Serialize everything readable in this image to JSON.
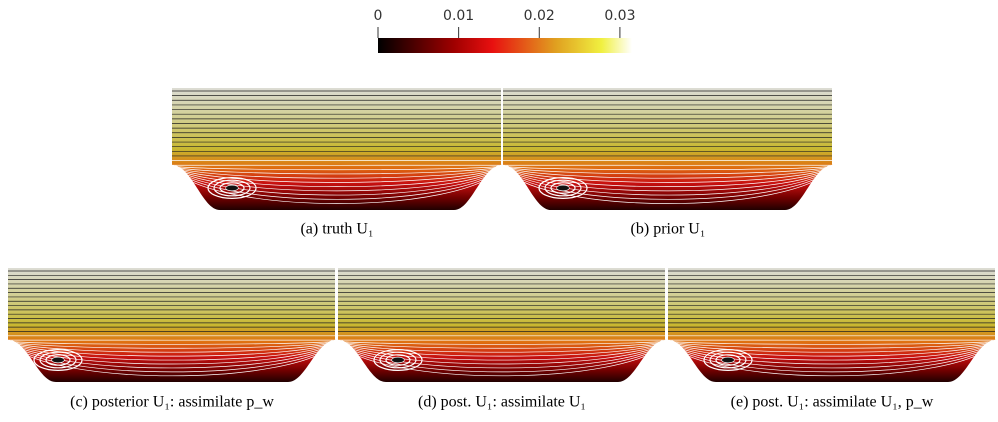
{
  "colorbar": {
    "lim": [
      0,
      0.0315
    ],
    "ticks": [
      0,
      0.01,
      0.02,
      0.03
    ]
  },
  "panels": [
    {
      "caption": "(a) truth U₁"
    },
    {
      "caption": "(b) prior U₁"
    },
    {
      "caption": "(c) posterior U₁: assimilate p_w"
    },
    {
      "caption": "(d) post. U₁: assimilate U₁"
    },
    {
      "caption": "(e) post. U₁: assimilate  U₁, p_w"
    }
  ]
}
